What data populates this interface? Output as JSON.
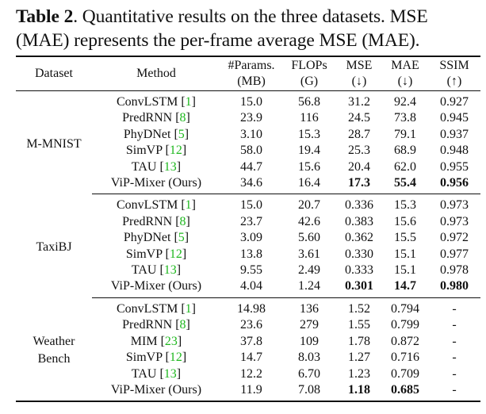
{
  "caption": {
    "label": "Table 2",
    "text": ".  Quantitative results on the three datasets.  MSE (MAE) represents the per-frame average MSE (MAE)."
  },
  "headers": {
    "dataset": "Dataset",
    "method": "Method",
    "params_line1": "#Params.",
    "params_line2": "(MB)",
    "flops_line1": "FLOPs",
    "flops_line2": "(G)",
    "mse_line1": "MSE",
    "mse_line2": "(↓)",
    "mae_line1": "MAE",
    "mae_line2": "(↓)",
    "ssim_line1": "SSIM",
    "ssim_line2": "(↑)"
  },
  "groups": [
    {
      "dataset": "M-MNIST",
      "rows": [
        {
          "method": "ConvLSTM",
          "ref": "1",
          "params": "15.0",
          "flops": "56.8",
          "mse": "31.2",
          "mae": "92.4",
          "ssim": "0.927"
        },
        {
          "method": "PredRNN",
          "ref": "8",
          "params": "23.9",
          "flops": "116",
          "mse": "24.5",
          "mae": "73.8",
          "ssim": "0.945"
        },
        {
          "method": "PhyDNet",
          "ref": "5",
          "params": "3.10",
          "flops": "15.3",
          "mse": "28.7",
          "mae": "79.1",
          "ssim": "0.937"
        },
        {
          "method": "SimVP",
          "ref": "12",
          "params": "58.0",
          "flops": "19.4",
          "mse": "25.3",
          "mae": "68.9",
          "ssim": "0.948"
        },
        {
          "method": "TAU",
          "ref": "13",
          "params": "44.7",
          "flops": "15.6",
          "mse": "20.4",
          "mae": "62.0",
          "ssim": "0.955"
        },
        {
          "method": "ViP-Mixer (Ours)",
          "ref": "",
          "params": "34.6",
          "flops": "16.4",
          "mse": "17.3",
          "mae": "55.4",
          "ssim": "0.956",
          "bold": [
            "mse",
            "mae",
            "ssim"
          ]
        }
      ]
    },
    {
      "dataset": "TaxiBJ",
      "rows": [
        {
          "method": "ConvLSTM",
          "ref": "1",
          "params": "15.0",
          "flops": "20.7",
          "mse": "0.336",
          "mae": "15.3",
          "ssim": "0.973"
        },
        {
          "method": "PredRNN",
          "ref": "8",
          "params": "23.7",
          "flops": "42.6",
          "mse": "0.383",
          "mae": "15.6",
          "ssim": "0.973"
        },
        {
          "method": "PhyDNet",
          "ref": "5",
          "params": "3.09",
          "flops": "5.60",
          "mse": "0.362",
          "mae": "15.5",
          "ssim": "0.972"
        },
        {
          "method": "SimVP",
          "ref": "12",
          "params": "13.8",
          "flops": "3.61",
          "mse": "0.330",
          "mae": "15.1",
          "ssim": "0.977"
        },
        {
          "method": "TAU",
          "ref": "13",
          "params": "9.55",
          "flops": "2.49",
          "mse": "0.333",
          "mae": "15.1",
          "ssim": "0.978"
        },
        {
          "method": "ViP-Mixer (Ours)",
          "ref": "",
          "params": "4.04",
          "flops": "1.24",
          "mse": "0.301",
          "mae": "14.7",
          "ssim": "0.980",
          "bold": [
            "mse",
            "mae",
            "ssim"
          ]
        }
      ]
    },
    {
      "dataset": "Weather Bench",
      "rows": [
        {
          "method": "ConvLSTM",
          "ref": "1",
          "params": "14.98",
          "flops": "136",
          "mse": "1.52",
          "mae": "0.794",
          "ssim": "-"
        },
        {
          "method": "PredRNN",
          "ref": "8",
          "params": "23.6",
          "flops": "279",
          "mse": "1.55",
          "mae": "0.799",
          "ssim": "-"
        },
        {
          "method": "MIM",
          "ref": "23",
          "params": "37.8",
          "flops": "109",
          "mse": "1.78",
          "mae": "0.872",
          "ssim": "-"
        },
        {
          "method": "SimVP",
          "ref": "12",
          "params": "14.7",
          "flops": "8.03",
          "mse": "1.27",
          "mae": "0.716",
          "ssim": "-"
        },
        {
          "method": "TAU",
          "ref": "13",
          "params": "12.2",
          "flops": "6.70",
          "mse": "1.23",
          "mae": "0.709",
          "ssim": "-"
        },
        {
          "method": "ViP-Mixer (Ours)",
          "ref": "",
          "params": "11.9",
          "flops": "7.08",
          "mse": "1.18",
          "mae": "0.685",
          "ssim": "-",
          "bold": [
            "mse",
            "mae"
          ]
        }
      ]
    }
  ]
}
